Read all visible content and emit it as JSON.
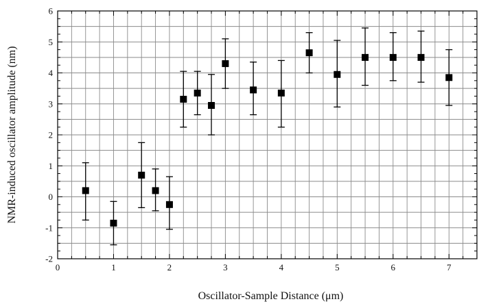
{
  "chart_data": {
    "type": "scatter",
    "title": "",
    "xlabel": "Oscillator-Sample Distance (μm)",
    "ylabel": "NMR-induced oscillator amplitude (nm)",
    "xlim": [
      0,
      7.5
    ],
    "ylim": [
      -2,
      6
    ],
    "x_ticks": [
      "0",
      "1",
      "2",
      "3",
      "4",
      "5",
      "6",
      "7"
    ],
    "y_ticks": [
      "-2",
      "-1",
      "0",
      "1",
      "2",
      "3",
      "4",
      "5",
      "6"
    ],
    "grid": true,
    "marker": "square",
    "color": "#000000",
    "points": [
      {
        "x": 0.5,
        "y": 0.2,
        "lo": -0.75,
        "hi": 1.1
      },
      {
        "x": 1.0,
        "y": -0.85,
        "lo": -1.55,
        "hi": -0.15
      },
      {
        "x": 1.5,
        "y": 0.7,
        "lo": -0.35,
        "hi": 1.75
      },
      {
        "x": 1.75,
        "y": 0.2,
        "lo": -0.45,
        "hi": 0.9
      },
      {
        "x": 2.0,
        "y": -0.25,
        "lo": -1.05,
        "hi": 0.65
      },
      {
        "x": 2.25,
        "y": 3.15,
        "lo": 2.25,
        "hi": 4.05
      },
      {
        "x": 2.5,
        "y": 3.35,
        "lo": 2.65,
        "hi": 4.05
      },
      {
        "x": 2.75,
        "y": 2.95,
        "lo": 2.0,
        "hi": 3.95
      },
      {
        "x": 3.0,
        "y": 4.3,
        "lo": 3.5,
        "hi": 5.1
      },
      {
        "x": 3.5,
        "y": 3.45,
        "lo": 2.65,
        "hi": 4.35
      },
      {
        "x": 4.0,
        "y": 3.35,
        "lo": 2.25,
        "hi": 4.4
      },
      {
        "x": 4.5,
        "y": 4.65,
        "lo": 4.0,
        "hi": 5.3
      },
      {
        "x": 5.0,
        "y": 3.95,
        "lo": 2.9,
        "hi": 5.05
      },
      {
        "x": 5.5,
        "y": 4.5,
        "lo": 3.6,
        "hi": 5.45
      },
      {
        "x": 6.0,
        "y": 4.5,
        "lo": 3.75,
        "hi": 5.3
      },
      {
        "x": 6.5,
        "y": 4.5,
        "lo": 3.7,
        "hi": 5.35
      },
      {
        "x": 7.0,
        "y": 3.85,
        "lo": 2.95,
        "hi": 4.75
      }
    ]
  }
}
